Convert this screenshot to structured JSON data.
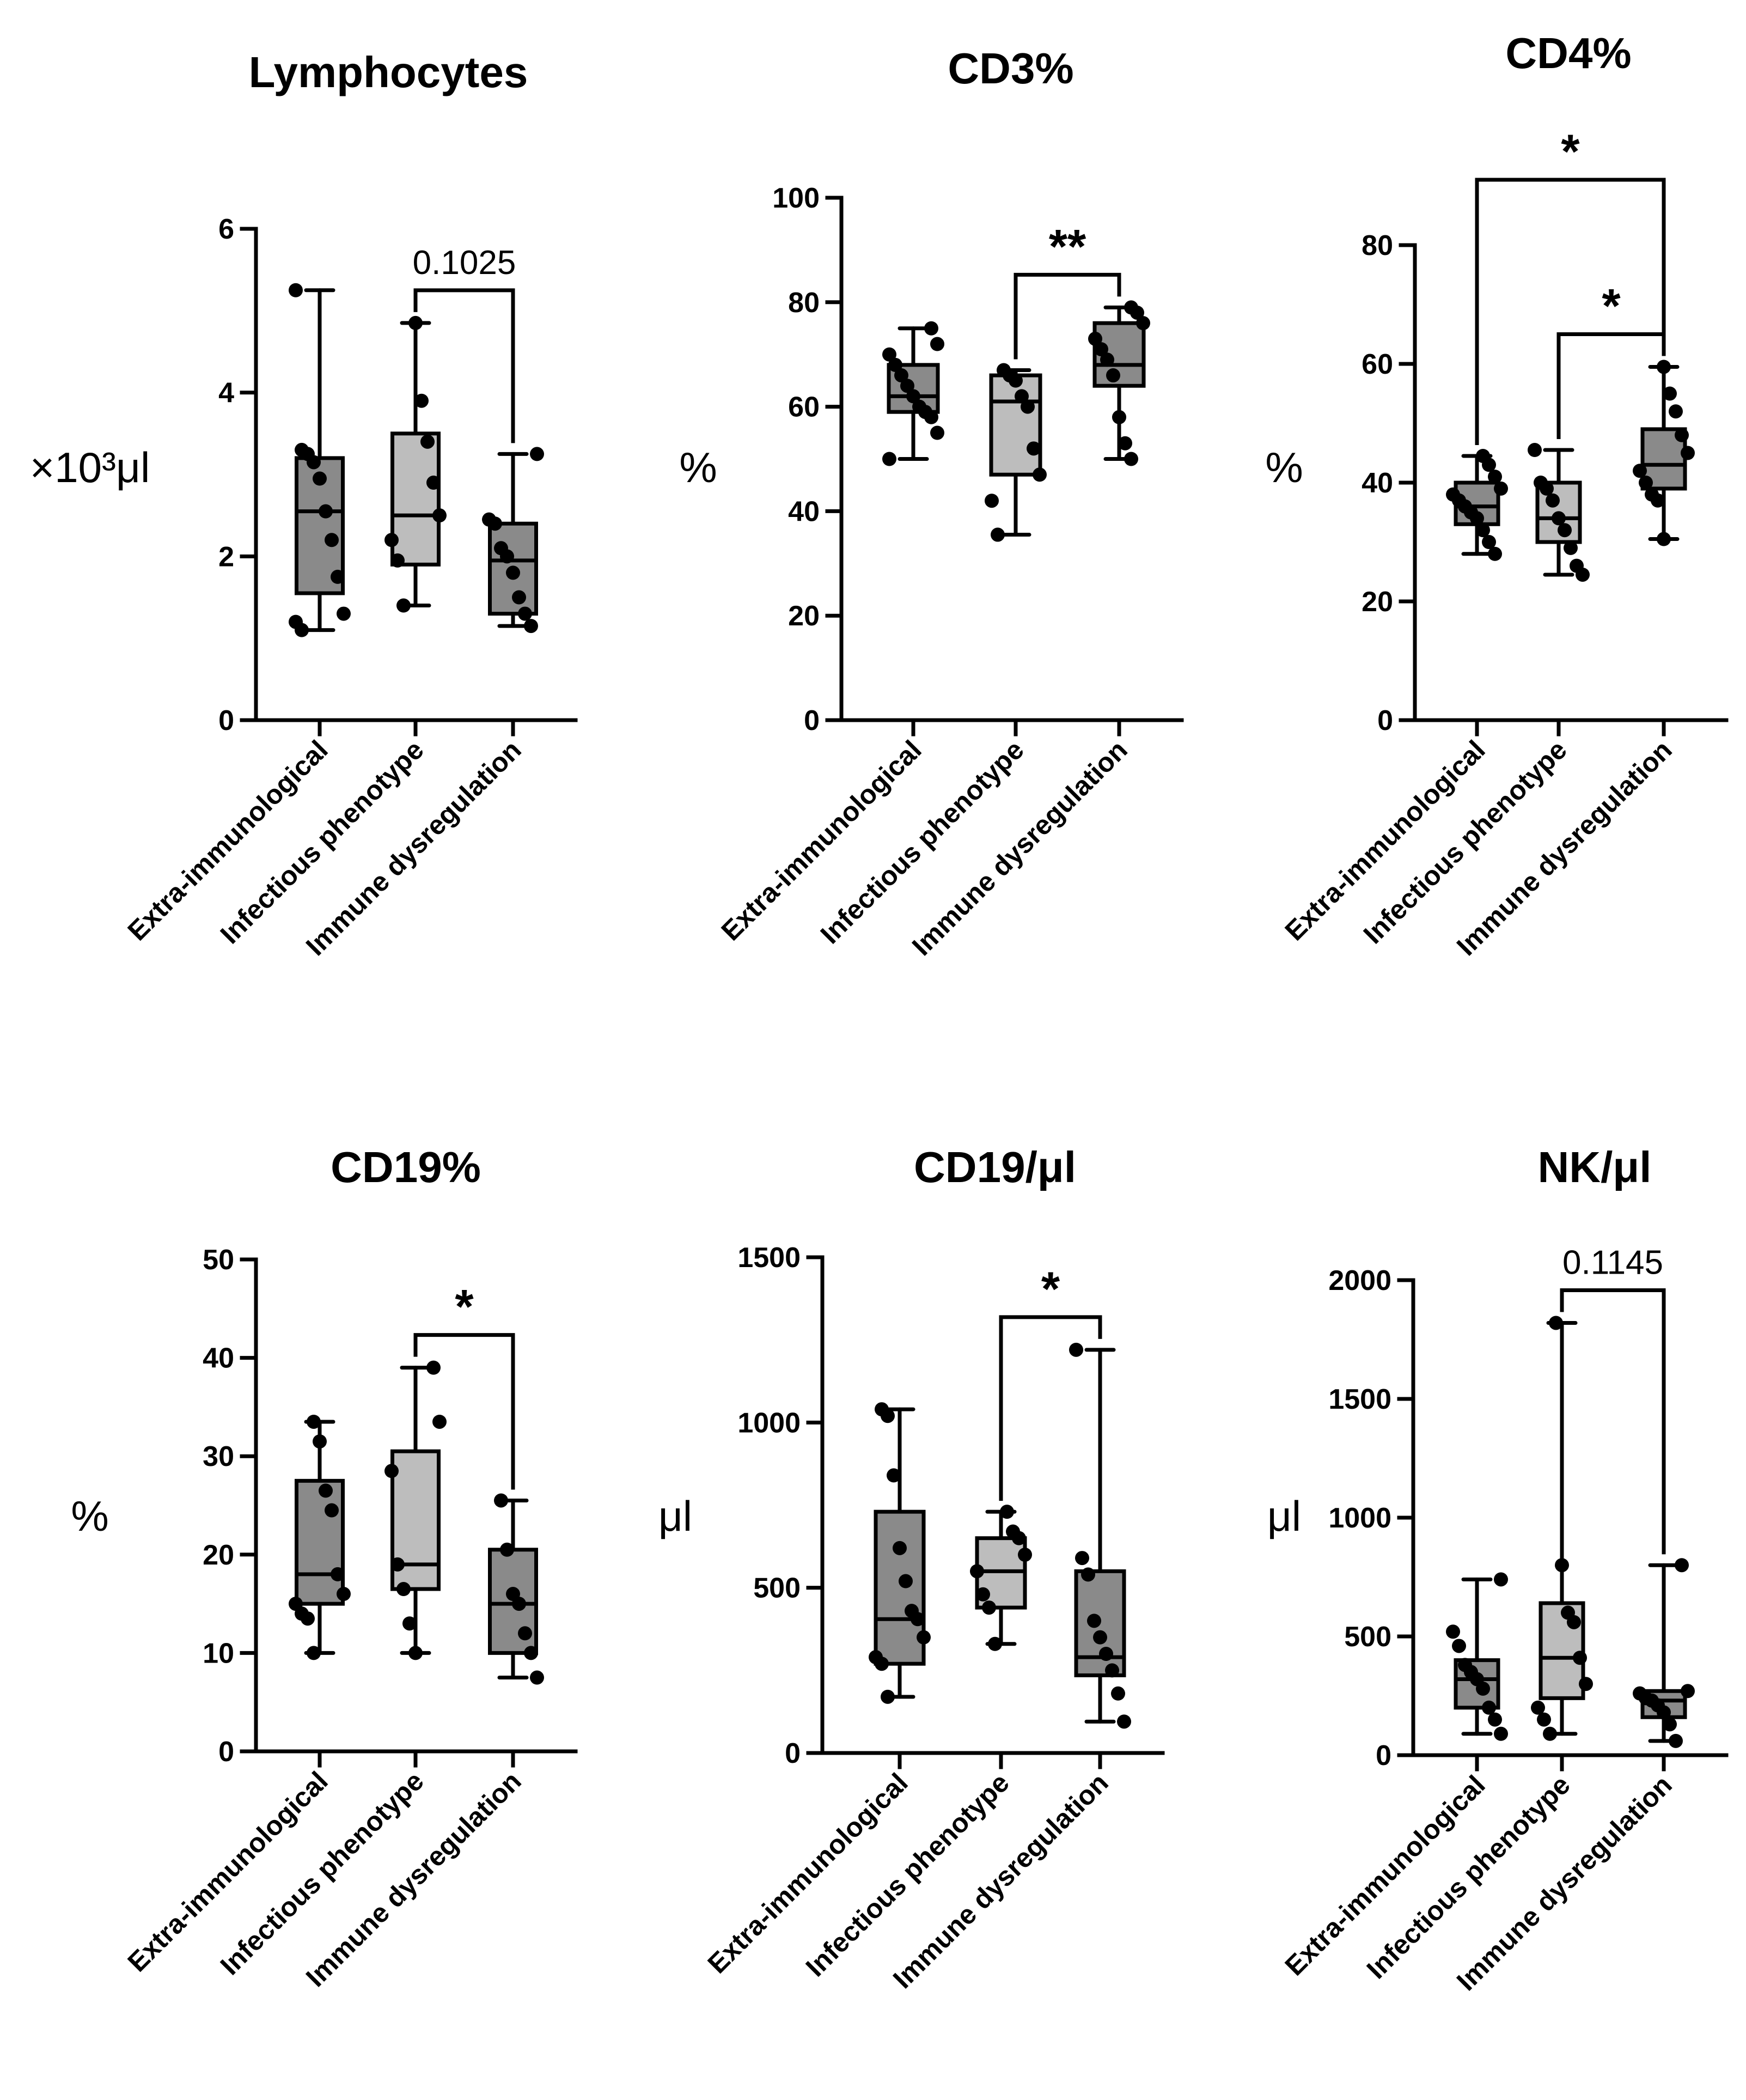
{
  "colors": {
    "box_dark": "#8a8a8a",
    "box_light": "#bdbdbd",
    "ink": "#000000",
    "background": "#ffffff"
  },
  "chart_data": [
    {
      "type": "box",
      "title": "Lymphocytes",
      "ylabel": "×10³μl",
      "ylim": [
        0,
        6
      ],
      "yticks": [
        0,
        2,
        4,
        6
      ],
      "categories": [
        "Extra-immunological",
        "Infectious phenotype",
        "Immune dysregulation"
      ],
      "boxes": [
        {
          "min": 1.1,
          "q1": 1.55,
          "median": 2.55,
          "q3": 3.2,
          "max": 5.25,
          "fill": "dark",
          "points": [
            5.25,
            3.3,
            3.25,
            3.15,
            2.95,
            2.55,
            2.2,
            1.75,
            1.3,
            1.2,
            1.1
          ]
        },
        {
          "min": 1.4,
          "q1": 1.9,
          "median": 2.5,
          "q3": 3.5,
          "max": 4.85,
          "fill": "light",
          "points": [
            4.85,
            3.9,
            3.4,
            2.9,
            2.5,
            2.2,
            1.95,
            1.4
          ]
        },
        {
          "min": 1.15,
          "q1": 1.3,
          "median": 1.95,
          "q3": 2.4,
          "max": 3.25,
          "fill": "dark",
          "points": [
            3.25,
            2.45,
            2.4,
            2.1,
            2.0,
            1.8,
            1.5,
            1.3,
            1.15
          ]
        }
      ],
      "comparisons": [
        {
          "from": 1,
          "to": 2,
          "label": "0.1025"
        }
      ]
    },
    {
      "type": "box",
      "title": "CD3%",
      "ylabel": "%",
      "ylim": [
        0,
        100
      ],
      "yticks": [
        0,
        20,
        40,
        60,
        80,
        100
      ],
      "categories": [
        "Extra-immunological",
        "Infectious phenotype",
        "Immune dysregulation"
      ],
      "boxes": [
        {
          "min": 50,
          "q1": 59,
          "median": 62,
          "q3": 68,
          "max": 75,
          "fill": "dark",
          "points": [
            75,
            72,
            70,
            68,
            66,
            64,
            62,
            60,
            59,
            58,
            55,
            50
          ]
        },
        {
          "min": 35.5,
          "q1": 47,
          "median": 61,
          "q3": 66,
          "max": 67,
          "fill": "light",
          "points": [
            67,
            66,
            65,
            62,
            60,
            52,
            47,
            42,
            35.5
          ]
        },
        {
          "min": 50,
          "q1": 64,
          "median": 68,
          "q3": 76,
          "max": 79,
          "fill": "dark",
          "points": [
            79,
            78,
            76,
            73,
            71,
            69,
            66,
            58,
            53,
            50
          ]
        }
      ],
      "comparisons": [
        {
          "from": 1,
          "to": 2,
          "label": "**"
        }
      ]
    },
    {
      "type": "box",
      "title": "CD4%",
      "ylabel": "%",
      "ylim": [
        0,
        80
      ],
      "yticks": [
        0,
        20,
        40,
        60,
        80
      ],
      "categories": [
        "Extra-immunological",
        "Infectious phenotype",
        "Immune dysregulation"
      ],
      "boxes": [
        {
          "min": 28,
          "q1": 33,
          "median": 36,
          "q3": 40,
          "max": 44.5,
          "fill": "dark",
          "points": [
            44.5,
            43,
            41,
            39,
            38,
            37,
            36,
            35,
            34,
            32,
            30,
            28
          ]
        },
        {
          "min": 24.5,
          "q1": 30,
          "median": 34,
          "q3": 40,
          "max": 45.5,
          "fill": "light",
          "points": [
            45.5,
            40,
            39,
            37,
            34,
            32,
            29,
            26,
            24.5
          ]
        },
        {
          "min": 30.5,
          "q1": 39,
          "median": 43,
          "q3": 49,
          "max": 59.5,
          "fill": "dark",
          "points": [
            59.5,
            55,
            52,
            48,
            45,
            42,
            40,
            38,
            37,
            30.5
          ]
        }
      ],
      "comparisons": [
        {
          "from": 1,
          "to": 2,
          "label": "*"
        },
        {
          "from": 0,
          "to": 2,
          "label": "*"
        }
      ]
    },
    {
      "type": "box",
      "title": "CD19%",
      "ylabel": "%",
      "ylim": [
        0,
        50
      ],
      "yticks": [
        0,
        10,
        20,
        30,
        40,
        50
      ],
      "categories": [
        "Extra-immunological",
        "Infectious phenotype",
        "Immune dysregulation"
      ],
      "boxes": [
        {
          "min": 10,
          "q1": 15,
          "median": 18,
          "q3": 27.5,
          "max": 33.5,
          "fill": "dark",
          "points": [
            33.5,
            31.5,
            26.5,
            24.5,
            18,
            16,
            15,
            14,
            13.5,
            10
          ]
        },
        {
          "min": 10,
          "q1": 16.5,
          "median": 19,
          "q3": 30.5,
          "max": 39,
          "fill": "light",
          "points": [
            39,
            33.5,
            28.5,
            19,
            16.5,
            13,
            10
          ]
        },
        {
          "min": 7.5,
          "q1": 10,
          "median": 15,
          "q3": 20.5,
          "max": 25.5,
          "fill": "dark",
          "points": [
            25.5,
            20.5,
            16,
            15,
            12,
            10,
            7.5
          ]
        }
      ],
      "comparisons": [
        {
          "from": 1,
          "to": 2,
          "label": "*"
        }
      ]
    },
    {
      "type": "box",
      "title": "CD19/μl",
      "ylabel": "μl",
      "ylim": [
        0,
        1500
      ],
      "yticks": [
        0,
        500,
        1000,
        1500
      ],
      "categories": [
        "Extra-immunological",
        "Infectious phenotype",
        "Immune dysregulation"
      ],
      "boxes": [
        {
          "min": 170,
          "q1": 270,
          "median": 405,
          "q3": 730,
          "max": 1040,
          "fill": "dark",
          "points": [
            1040,
            1020,
            840,
            620,
            520,
            430,
            405,
            350,
            290,
            270,
            170
          ]
        },
        {
          "min": 330,
          "q1": 440,
          "median": 550,
          "q3": 650,
          "max": 730,
          "fill": "light",
          "points": [
            730,
            670,
            650,
            600,
            550,
            480,
            440,
            330
          ]
        },
        {
          "min": 95,
          "q1": 235,
          "median": 290,
          "q3": 550,
          "max": 1220,
          "fill": "dark",
          "points": [
            1220,
            590,
            540,
            400,
            350,
            300,
            250,
            180,
            95
          ]
        }
      ],
      "comparisons": [
        {
          "from": 1,
          "to": 2,
          "label": "*"
        }
      ]
    },
    {
      "type": "box",
      "title": "NK/μl",
      "ylabel": "μl",
      "ylim": [
        0,
        2000
      ],
      "yticks": [
        0,
        500,
        1000,
        1500,
        2000
      ],
      "categories": [
        "Extra-immunological",
        "Infectious phenotype",
        "Immune dysregulation"
      ],
      "boxes": [
        {
          "min": 90,
          "q1": 200,
          "median": 320,
          "q3": 400,
          "max": 740,
          "fill": "dark",
          "points": [
            740,
            520,
            460,
            380,
            350,
            320,
            280,
            200,
            150,
            90
          ]
        },
        {
          "min": 90,
          "q1": 240,
          "median": 410,
          "q3": 640,
          "max": 1820,
          "fill": "light",
          "points": [
            1820,
            800,
            600,
            560,
            410,
            300,
            200,
            150,
            90
          ]
        },
        {
          "min": 60,
          "q1": 160,
          "median": 230,
          "q3": 270,
          "max": 800,
          "fill": "dark",
          "points": [
            800,
            270,
            260,
            240,
            230,
            210,
            180,
            130,
            60
          ]
        }
      ],
      "comparisons": [
        {
          "from": 1,
          "to": 2,
          "label": "0.1145"
        }
      ]
    }
  ]
}
